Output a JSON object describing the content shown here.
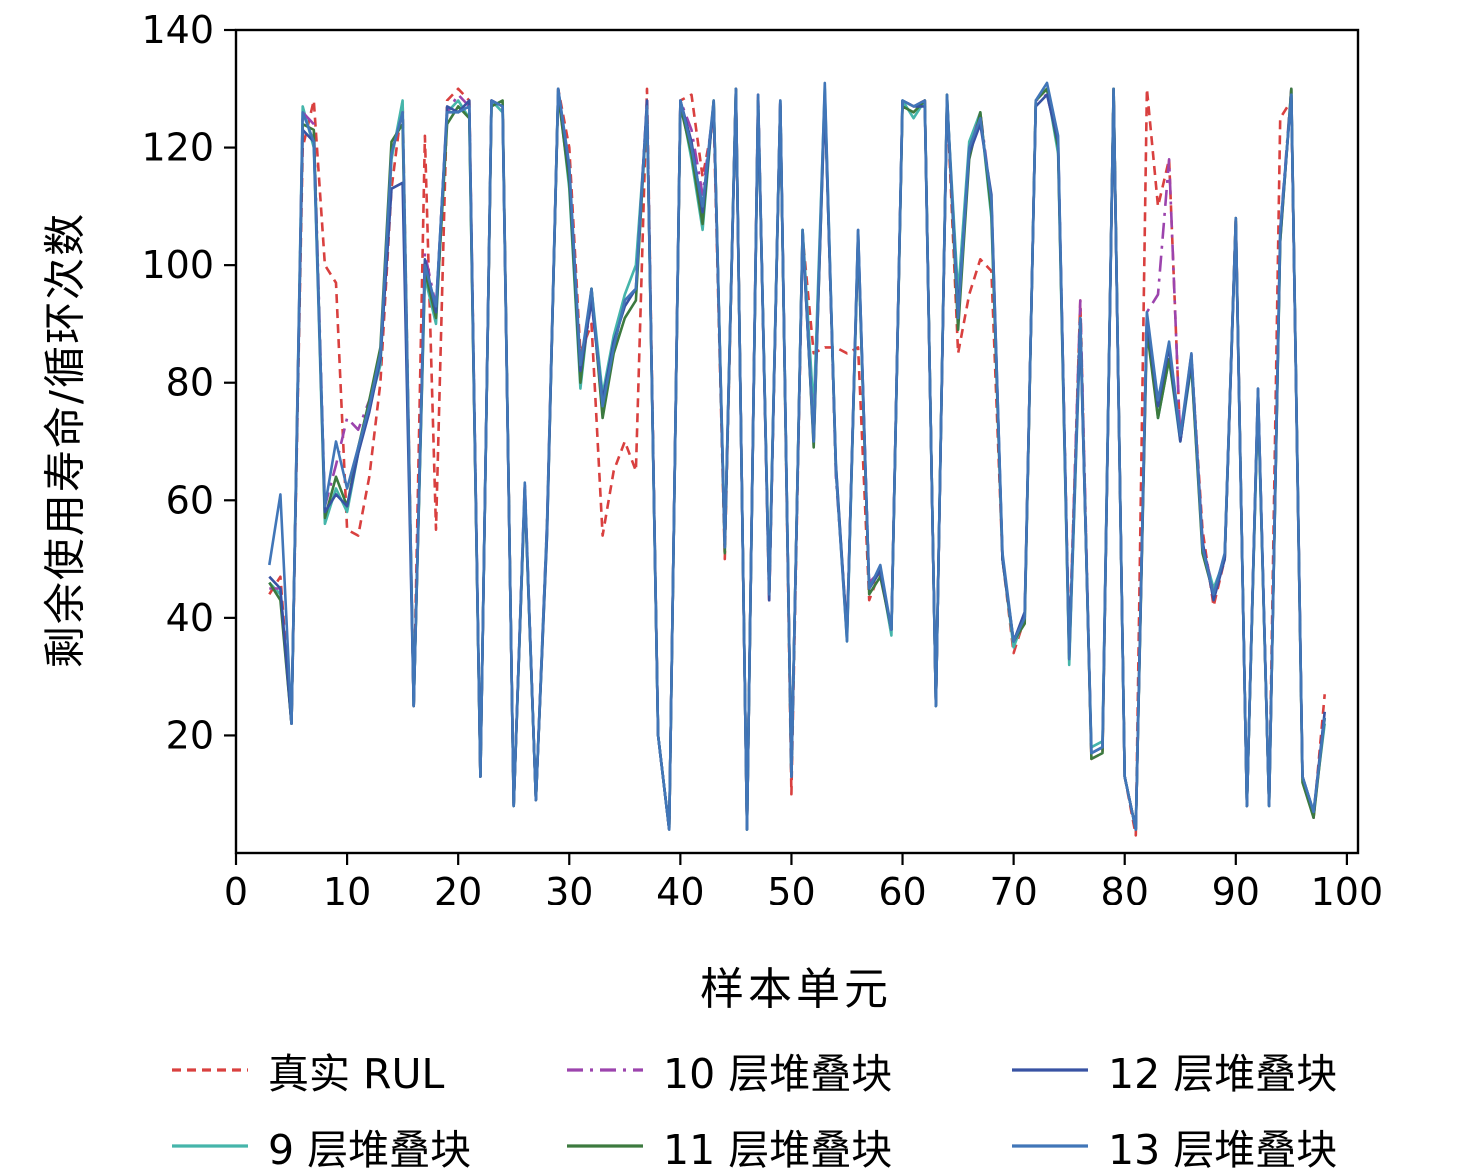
{
  "chart_data": {
    "type": "line",
    "title": "",
    "xlabel": "样本单元",
    "ylabel": "剩余使用寿命/循环次数",
    "xlim": [
      0,
      101
    ],
    "ylim": [
      0,
      140
    ],
    "xticks": [
      0,
      10,
      20,
      30,
      40,
      50,
      60,
      70,
      80,
      90,
      100
    ],
    "yticks": [
      20,
      40,
      60,
      80,
      100,
      120,
      140
    ],
    "grid": false,
    "legend_position": "bottom",
    "legend_order": [
      0,
      2,
      4,
      1,
      3,
      5
    ],
    "x": [
      3,
      4,
      5,
      6,
      7,
      8,
      9,
      10,
      11,
      12,
      13,
      14,
      15,
      16,
      17,
      18,
      19,
      20,
      21,
      22,
      23,
      24,
      25,
      26,
      27,
      28,
      29,
      30,
      31,
      32,
      33,
      34,
      35,
      36,
      37,
      38,
      39,
      40,
      41,
      42,
      43,
      44,
      45,
      46,
      47,
      48,
      49,
      50,
      51,
      52,
      53,
      54,
      55,
      56,
      57,
      58,
      59,
      60,
      61,
      62,
      63,
      64,
      65,
      66,
      67,
      68,
      69,
      70,
      71,
      72,
      73,
      74,
      75,
      76,
      77,
      78,
      79,
      80,
      81,
      82,
      83,
      84,
      85,
      86,
      87,
      88,
      89,
      90,
      91,
      92,
      93,
      94,
      95,
      96,
      97,
      98
    ],
    "series": [
      {
        "name": "真实 RUL",
        "color": "#d9403f",
        "dash": "9 6",
        "values": [
          44,
          47,
          22,
          120,
          128,
          100,
          97,
          55,
          54,
          64,
          80,
          113,
          128,
          25,
          122,
          55,
          128,
          130,
          128,
          13,
          128,
          127,
          8,
          62,
          9,
          55,
          130,
          120,
          85,
          90,
          54,
          65,
          70,
          65,
          130,
          20,
          4,
          128,
          129,
          115,
          125,
          50,
          130,
          4,
          129,
          43,
          128,
          10,
          105,
          85,
          86,
          86,
          85,
          86,
          43,
          48,
          38,
          128,
          127,
          128,
          25,
          128,
          85,
          95,
          101,
          99,
          50,
          34,
          40,
          128,
          130,
          120,
          35,
          94,
          16,
          17,
          130,
          13,
          3,
          130,
          110,
          118,
          70,
          84,
          55,
          42,
          50,
          108,
          8,
          78,
          8,
          125,
          128,
          13,
          6,
          27
        ]
      },
      {
        "name": "9 层堆叠块",
        "color": "#45b5aa",
        "dash": "",
        "values": [
          46,
          44,
          22,
          127,
          120,
          56,
          62,
          58,
          68,
          76,
          83,
          118,
          128,
          25,
          98,
          90,
          126,
          128,
          125,
          13,
          128,
          126,
          8,
          61,
          9,
          54,
          130,
          113,
          79,
          96,
          78,
          88,
          95,
          100,
          126,
          20,
          4,
          128,
          118,
          106,
          128,
          53,
          130,
          4,
          128,
          45,
          128,
          13,
          106,
          75,
          130,
          66,
          36,
          104,
          45,
          48,
          37,
          128,
          125,
          128,
          25,
          128,
          95,
          121,
          126,
          108,
          50,
          35,
          40,
          128,
          130,
          119,
          32,
          89,
          18,
          19,
          130,
          13,
          4,
          91,
          74,
          84,
          70,
          83,
          52,
          45,
          50,
          107,
          8,
          77,
          8,
          104,
          130,
          13,
          7,
          22
        ]
      },
      {
        "name": "10 层堆叠块",
        "color": "#9c44ad",
        "dash": "16 7 3 7",
        "values": [
          45,
          45,
          22,
          126,
          124,
          59,
          66,
          74,
          72,
          77,
          84,
          119,
          126,
          25,
          102,
          93,
          126,
          129,
          127,
          13,
          128,
          127,
          8,
          63,
          9,
          56,
          129,
          116,
          81,
          94,
          76,
          86,
          94,
          96,
          128,
          20,
          4,
          128,
          123,
          112,
          127,
          52,
          130,
          4,
          129,
          43,
          128,
          13,
          105,
          71,
          129,
          64,
          38,
          104,
          46,
          48,
          38,
          128,
          127,
          128,
          25,
          128,
          91,
          119,
          126,
          111,
          50,
          36,
          40,
          128,
          129,
          121,
          34,
          94,
          17,
          18,
          130,
          13,
          4,
          92,
          95,
          118,
          70,
          85,
          53,
          44,
          50,
          108,
          8,
          79,
          8,
          106,
          130,
          13,
          6,
          24
        ]
      },
      {
        "name": "11 层堆叠块",
        "color": "#3c7a3f",
        "dash": "",
        "values": [
          46,
          43,
          22,
          124,
          123,
          57,
          64,
          59,
          69,
          77,
          86,
          121,
          124,
          25,
          99,
          91,
          124,
          127,
          125,
          13,
          127,
          128,
          8,
          62,
          9,
          55,
          129,
          114,
          80,
          96,
          74,
          85,
          91,
          94,
          127,
          20,
          4,
          127,
          119,
          107,
          128,
          51,
          130,
          4,
          128,
          44,
          127,
          13,
          106,
          69,
          129,
          65,
          37,
          105,
          44,
          47,
          38,
          127,
          126,
          128,
          25,
          129,
          89,
          118,
          126,
          109,
          50,
          36,
          39,
          128,
          130,
          120,
          33,
          91,
          16,
          17,
          130,
          13,
          4,
          89,
          74,
          84,
          71,
          83,
          51,
          44,
          50,
          108,
          8,
          78,
          8,
          104,
          130,
          12,
          6,
          23
        ]
      },
      {
        "name": "12 层堆叠块",
        "color": "#3853a3",
        "dash": "",
        "values": [
          47,
          45,
          22,
          123,
          121,
          58,
          61,
          59,
          68,
          75,
          84,
          113,
          114,
          25,
          101,
          92,
          127,
          126,
          128,
          13,
          128,
          127,
          8,
          62,
          9,
          54,
          130,
          116,
          82,
          94,
          77,
          87,
          93,
          96,
          128,
          20,
          4,
          128,
          121,
          109,
          127,
          52,
          129,
          4,
          128,
          43,
          128,
          13,
          105,
          70,
          128,
          66,
          37,
          106,
          45,
          48,
          38,
          128,
          127,
          127,
          25,
          128,
          92,
          119,
          124,
          112,
          50,
          36,
          41,
          127,
          129,
          121,
          34,
          90,
          17,
          18,
          129,
          13,
          4,
          91,
          76,
          86,
          70,
          84,
          53,
          43,
          50,
          107,
          8,
          79,
          8,
          105,
          129,
          13,
          7,
          24
        ]
      },
      {
        "name": "13 层堆叠块",
        "color": "#4176b8",
        "dash": "",
        "values": [
          49,
          61,
          22,
          126,
          121,
          59,
          70,
          62,
          69,
          76,
          85,
          119,
          126,
          25,
          100,
          93,
          126,
          126,
          127,
          13,
          128,
          127,
          8,
          63,
          9,
          56,
          130,
          117,
          83,
          96,
          76,
          86,
          94,
          96,
          127,
          20,
          4,
          128,
          120,
          110,
          128,
          52,
          130,
          4,
          129,
          44,
          128,
          13,
          106,
          70,
          131,
          65,
          36,
          106,
          45,
          49,
          38,
          128,
          127,
          128,
          25,
          129,
          91,
          120,
          125,
          111,
          51,
          36,
          40,
          128,
          131,
          122,
          33,
          91,
          17,
          18,
          130,
          13,
          4,
          92,
          77,
          87,
          71,
          85,
          52,
          44,
          51,
          108,
          8,
          79,
          8,
          106,
          129,
          13,
          7,
          23
        ]
      }
    ]
  }
}
